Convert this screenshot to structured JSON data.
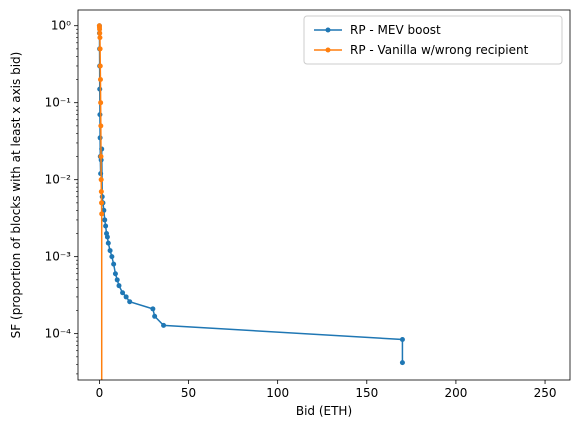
{
  "chart_data": {
    "type": "line",
    "title": "",
    "xlabel": "Bid (ETH)",
    "ylabel": "SF (proportion of blocks with at least x axis bid)",
    "xlim": [
      -12,
      264
    ],
    "ylim": [
      2.5e-05,
      1.6
    ],
    "yscale": "log",
    "grid": false,
    "legend_position": "top-right",
    "xticks": [
      0,
      50,
      100,
      150,
      200,
      250
    ],
    "yticks": [
      {
        "value": 1,
        "label": "10⁰"
      },
      {
        "value": 0.1,
        "label": "10⁻¹"
      },
      {
        "value": 0.01,
        "label": "10⁻²"
      },
      {
        "value": 0.001,
        "label": "10⁻³"
      },
      {
        "value": 0.0001,
        "label": "10⁻⁴"
      }
    ],
    "series": [
      {
        "name": "RP - MEV boost",
        "color": "#1f77b4",
        "x": [
          0.0,
          0.05,
          0.1,
          0.15,
          0.2,
          0.3,
          0.4,
          0.5,
          0.7,
          1.0,
          1.3,
          1.6,
          2.0,
          2.5,
          3.0,
          3.5,
          4.0,
          4.5,
          5.0,
          6.0,
          7.0,
          8.0,
          9.0,
          10.0,
          11.0,
          13.0,
          15.0,
          17.0,
          30.0,
          31.0,
          36.0,
          170.0,
          170.0
        ],
        "y": [
          1.0,
          0.8,
          0.5,
          0.3,
          0.15,
          0.07,
          0.035,
          0.02,
          0.012,
          0.018,
          0.025,
          0.006,
          0.005,
          0.004,
          0.003,
          0.0025,
          0.002,
          0.0018,
          0.0015,
          0.0012,
          0.001,
          0.0008,
          0.0006,
          0.0005,
          0.00042,
          0.00034,
          0.0003,
          0.00026,
          0.00021,
          0.000168,
          0.000128,
          8.4e-05,
          4.2e-05
        ]
      },
      {
        "name": "RP - Vanilla w/wrong recipient",
        "color": "#ff7f0e",
        "x": [
          0.0,
          0.05,
          0.1,
          0.2,
          0.3,
          0.4,
          0.5,
          0.6,
          0.7,
          0.8,
          0.9,
          1.0,
          1.1,
          1.2,
          1.3,
          1.3
        ],
        "y": [
          1.0,
          0.95,
          0.9,
          0.8,
          0.7,
          0.5,
          0.3,
          0.2,
          0.1,
          0.05,
          0.02,
          0.01,
          0.007,
          0.005,
          0.0036,
          1e-05
        ]
      }
    ]
  }
}
